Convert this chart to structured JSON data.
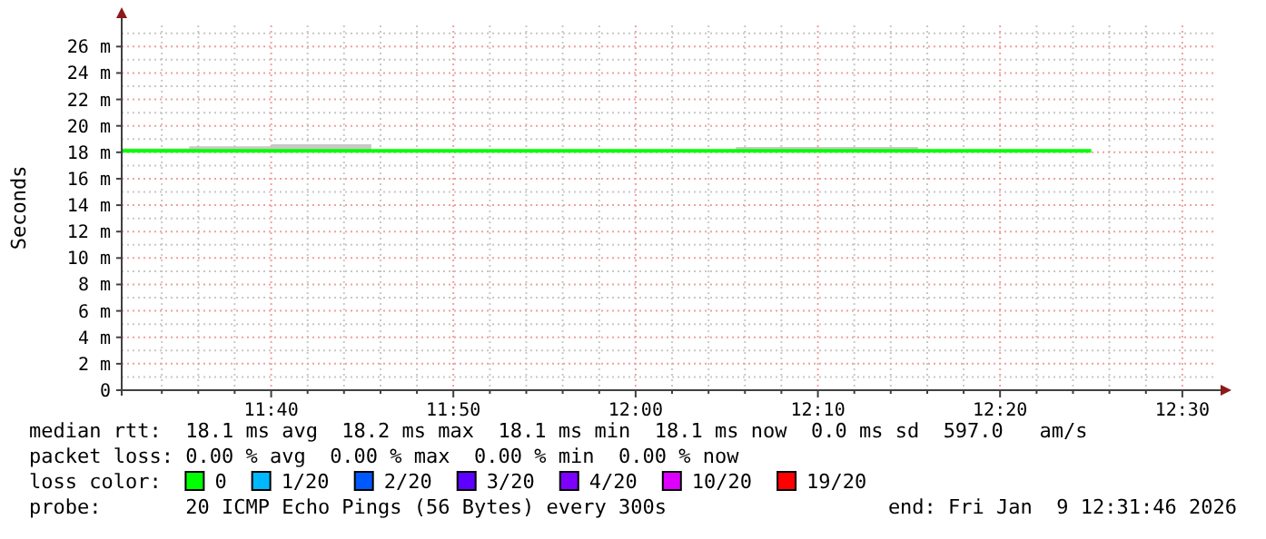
{
  "chart_data": {
    "type": "step",
    "ylabel": "Seconds",
    "xlim": [
      11.53,
      12.53
    ],
    "xticks": [
      {
        "value": 11.5667,
        "label": null
      },
      {
        "value": 11.6,
        "label": null
      },
      {
        "value": 11.6333,
        "label": null
      },
      {
        "value": 11.6667,
        "label": "11:40"
      },
      {
        "value": 11.7,
        "label": null
      },
      {
        "value": 11.7333,
        "label": null
      },
      {
        "value": 11.7667,
        "label": null
      },
      {
        "value": 11.8,
        "label": null
      },
      {
        "value": 11.8333,
        "label": "11:50"
      },
      {
        "value": 11.8667,
        "label": null
      },
      {
        "value": 11.9,
        "label": null
      },
      {
        "value": 11.9333,
        "label": null
      },
      {
        "value": 11.9667,
        "label": null
      },
      {
        "value": 12.0,
        "label": "12:00"
      },
      {
        "value": 12.0333,
        "label": null
      },
      {
        "value": 12.0667,
        "label": null
      },
      {
        "value": 12.1,
        "label": null
      },
      {
        "value": 12.1333,
        "label": null
      },
      {
        "value": 12.1667,
        "label": "12:10"
      },
      {
        "value": 12.2,
        "label": null
      },
      {
        "value": 12.2333,
        "label": null
      },
      {
        "value": 12.2667,
        "label": null
      },
      {
        "value": 12.3,
        "label": null
      },
      {
        "value": 12.3333,
        "label": "12:20"
      },
      {
        "value": 12.3667,
        "label": null
      },
      {
        "value": 12.4,
        "label": null
      },
      {
        "value": 12.4333,
        "label": null
      },
      {
        "value": 12.4667,
        "label": null
      },
      {
        "value": 12.5,
        "label": "12:30"
      }
    ],
    "ylim": [
      0,
      27.6
    ],
    "yticks": [
      {
        "value": 0,
        "label": "0"
      },
      {
        "value": 1,
        "label": null
      },
      {
        "value": 2,
        "label": "2 m"
      },
      {
        "value": 3,
        "label": null
      },
      {
        "value": 4,
        "label": "4 m"
      },
      {
        "value": 5,
        "label": null
      },
      {
        "value": 6,
        "label": "6 m"
      },
      {
        "value": 7,
        "label": null
      },
      {
        "value": 8,
        "label": "8 m"
      },
      {
        "value": 9,
        "label": null
      },
      {
        "value": 10,
        "label": "10 m"
      },
      {
        "value": 11,
        "label": null
      },
      {
        "value": 12,
        "label": "12 m"
      },
      {
        "value": 13,
        "label": null
      },
      {
        "value": 14,
        "label": "14 m"
      },
      {
        "value": 15,
        "label": null
      },
      {
        "value": 16,
        "label": "16 m"
      },
      {
        "value": 17,
        "label": null
      },
      {
        "value": 18,
        "label": "18 m"
      },
      {
        "value": 19,
        "label": null
      },
      {
        "value": 20,
        "label": "20 m"
      },
      {
        "value": 21,
        "label": null
      },
      {
        "value": 22,
        "label": "22 m"
      },
      {
        "value": 23,
        "label": null
      },
      {
        "value": 24,
        "label": "24 m"
      },
      {
        "value": 25,
        "label": null
      },
      {
        "value": 26,
        "label": "26 m"
      },
      {
        "value": 27,
        "label": null
      }
    ],
    "grid": true,
    "legend": "bottom",
    "legend_title": "loss color:",
    "series": [
      {
        "name": "0",
        "color": "#00ff00",
        "x": [
          11.53,
          11.5917,
          11.6667,
          11.7583,
          12.0917,
          12.2583,
          12.3333,
          12.4167
        ],
        "values": [
          18.1,
          18.1,
          18.1,
          18.1,
          18.1,
          18.1,
          18.1,
          18.1
        ],
        "lower": [
          18.1,
          18.1,
          18.1,
          18.1,
          18.1,
          18.1,
          18.1,
          18.1
        ],
        "upper": [
          18.3,
          18.45,
          18.6,
          18.1,
          18.4,
          18.2,
          18.2,
          18.2
        ]
      },
      {
        "name": "1/20",
        "color": "#00b8ff"
      },
      {
        "name": "2/20",
        "color": "#0059ff"
      },
      {
        "name": "3/20",
        "color": "#5e00ff"
      },
      {
        "name": "4/20",
        "color": "#7e00ff"
      },
      {
        "name": "10/20",
        "color": "#dd00ff"
      },
      {
        "name": "19/20",
        "color": "#ff0000"
      }
    ],
    "annotations": [
      "median rtt:  18.1 ms avg  18.2 ms max  18.1 ms min  18.1 ms now  0.0 ms sd  597.0   am/s",
      "packet loss: 0.00 % avg  0.00 % max  0.00 % min  0.00 % now",
      "probe:       20 ICMP Echo Pings (56 Bytes) every 300s",
      "end: Fri Jan  9 12:31:46 2026"
    ]
  }
}
